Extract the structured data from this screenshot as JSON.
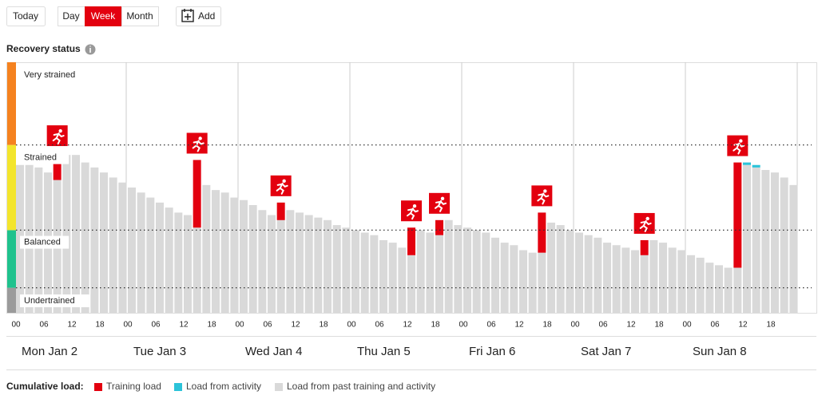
{
  "toolbar": {
    "today": "Today",
    "views": [
      "Day",
      "Week",
      "Month"
    ],
    "active_view": "Week",
    "add": "Add"
  },
  "chart_data": {
    "type": "stacked-bar",
    "title": "Recovery status",
    "ylim": [
      0,
      100
    ],
    "zones": [
      {
        "name": "Undertrained",
        "from": 0,
        "to": 10,
        "color": "#9b9b9b"
      },
      {
        "name": "Balanced",
        "from": 10,
        "to": 33,
        "color": "#1fc28d"
      },
      {
        "name": "Strained",
        "from": 33,
        "to": 67,
        "color": "#f3e52c"
      },
      {
        "name": "Very strained",
        "from": 67,
        "to": 100,
        "color": "#f5821f"
      }
    ],
    "hour_ticks": [
      {
        "value": 0,
        "label": "00"
      },
      {
        "value": 3,
        "label": "06"
      },
      {
        "value": 6,
        "label": "12"
      },
      {
        "value": 9,
        "label": "18"
      },
      {
        "value": 12,
        "label": "00"
      },
      {
        "value": 15,
        "label": "06"
      },
      {
        "value": 18,
        "label": "12"
      },
      {
        "value": 21,
        "label": "18"
      },
      {
        "value": 24,
        "label": "00"
      },
      {
        "value": 27,
        "label": "06"
      },
      {
        "value": 30,
        "label": "12"
      },
      {
        "value": 33,
        "label": "18"
      },
      {
        "value": 36,
        "label": "00"
      },
      {
        "value": 39,
        "label": "06"
      },
      {
        "value": 42,
        "label": "12"
      },
      {
        "value": 45,
        "label": "18"
      },
      {
        "value": 48,
        "label": "00"
      },
      {
        "value": 51,
        "label": "06"
      },
      {
        "value": 54,
        "label": "12"
      },
      {
        "value": 57,
        "label": "18"
      },
      {
        "value": 60,
        "label": "00"
      },
      {
        "value": 63,
        "label": "06"
      },
      {
        "value": 66,
        "label": "12"
      },
      {
        "value": 69,
        "label": "18"
      },
      {
        "value": 72,
        "label": "00"
      },
      {
        "value": 75,
        "label": "06"
      },
      {
        "value": 78,
        "label": "12"
      },
      {
        "value": 81,
        "label": "18"
      }
    ],
    "day_ticks": [
      {
        "value": 0,
        "label": "Mon Jan 2"
      },
      {
        "value": 12,
        "label": "Tue Jan 3"
      },
      {
        "value": 24,
        "label": "Wed Jan 4"
      },
      {
        "value": 36,
        "label": "Thu Jan 5"
      },
      {
        "value": 48,
        "label": "Fri Jan 6"
      },
      {
        "value": 60,
        "label": "Sat Jan 7"
      },
      {
        "value": 72,
        "label": "Sun Jan 8"
      }
    ],
    "legend_title": "Cumulative load:",
    "series": [
      {
        "name": "Training load",
        "color": "#e3000f",
        "values": [
          null,
          null,
          null,
          null,
          11,
          null,
          null,
          null,
          null,
          null,
          null,
          null,
          null,
          null,
          null,
          null,
          null,
          null,
          null,
          27,
          null,
          null,
          null,
          null,
          null,
          null,
          null,
          null,
          7,
          null,
          null,
          null,
          null,
          null,
          null,
          null,
          null,
          null,
          null,
          null,
          null,
          null,
          11,
          null,
          null,
          6,
          null,
          null,
          null,
          null,
          null,
          null,
          null,
          null,
          null,
          null,
          16,
          null,
          null,
          null,
          null,
          null,
          null,
          null,
          null,
          null,
          null,
          6,
          null,
          null,
          null,
          null,
          null,
          null,
          null,
          null,
          null,
          42,
          null,
          null,
          null,
          null,
          null,
          null
        ]
      },
      {
        "name": "Load from activity",
        "color": "#2cc3d9",
        "values": [
          null,
          null,
          null,
          null,
          null,
          null,
          null,
          null,
          null,
          null,
          null,
          null,
          null,
          null,
          null,
          null,
          null,
          null,
          null,
          null,
          null,
          null,
          null,
          null,
          null,
          null,
          null,
          null,
          null,
          null,
          null,
          null,
          null,
          null,
          null,
          null,
          null,
          null,
          null,
          null,
          null,
          null,
          null,
          null,
          null,
          null,
          null,
          null,
          null,
          null,
          null,
          null,
          null,
          null,
          null,
          null,
          null,
          null,
          null,
          null,
          null,
          null,
          null,
          null,
          null,
          null,
          null,
          null,
          null,
          null,
          null,
          null,
          null,
          null,
          null,
          null,
          null,
          null,
          1,
          1,
          null,
          null,
          null,
          null
        ]
      },
      {
        "name": "Load from past training and activity",
        "color": "#d9d9d9",
        "values": [
          59,
          59,
          58,
          56,
          53,
          63,
          63,
          60,
          58,
          56,
          54,
          52,
          50,
          48,
          46,
          44,
          42,
          40,
          39,
          34,
          51,
          49,
          48,
          46,
          45,
          43,
          41,
          39,
          37,
          41,
          40,
          39,
          38,
          37,
          35,
          34,
          33,
          32,
          31,
          29,
          28,
          26,
          23,
          33,
          32,
          31,
          37,
          35,
          34,
          33,
          32,
          30,
          28,
          27,
          25,
          24,
          24,
          36,
          35,
          33,
          32,
          31,
          30,
          28,
          27,
          26,
          25,
          23,
          29,
          28,
          26,
          25,
          23,
          22,
          20,
          19,
          18,
          18,
          59,
          58,
          57,
          56,
          54,
          51
        ]
      }
    ]
  }
}
